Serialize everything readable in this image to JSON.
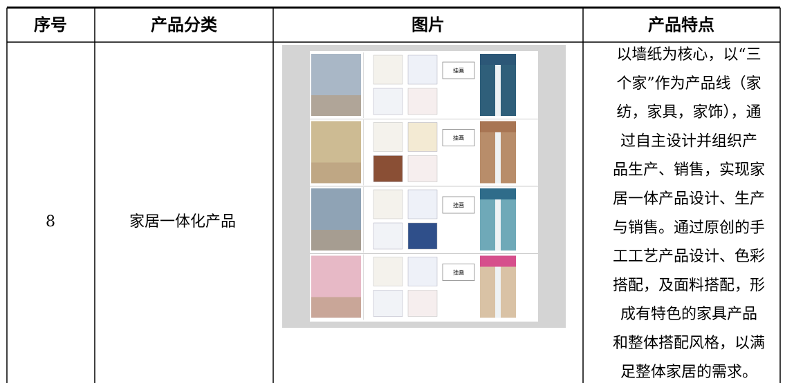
{
  "table": {
    "header": [
      "序号",
      "产品分类",
      "图片",
      "产品特点"
    ],
    "rows": [
      {
        "no": "8",
        "category": "家居一体化产品",
        "image_labels": [
          "挂画",
          "挂画",
          "挂画",
          "挂画"
        ],
        "features": [
          "以墙纸为核心，以“三",
          "个家”作为产品线（家",
          "纺，家具，家饰），通",
          "过自主设计并组织产",
          "品生产、销售，实现家",
          "居一体产品设计、生产",
          "与销售。通过原创的手",
          "工工艺产品设计、色彩",
          "搭配，及面料搭配，形",
          "成有特色的家具产品",
          "和整体搭配风格，以满",
          "足整体家居的需求。"
        ]
      }
    ]
  }
}
